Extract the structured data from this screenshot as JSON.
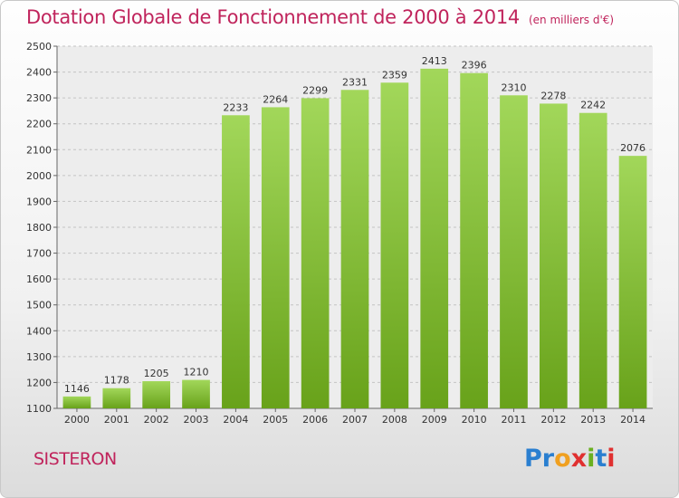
{
  "chart_data": {
    "type": "bar",
    "title": "Dotation Globale de Fonctionnement de 2000 à 2014",
    "subtitle": "(en milliers d'€)",
    "categories": [
      "2000",
      "2001",
      "2002",
      "2003",
      "2004",
      "2005",
      "2006",
      "2007",
      "2008",
      "2009",
      "2010",
      "2011",
      "2012",
      "2013",
      "2014"
    ],
    "values": [
      1146,
      1178,
      1205,
      1210,
      2233,
      2264,
      2299,
      2331,
      2359,
      2413,
      2396,
      2310,
      2278,
      2242,
      2076
    ],
    "ylim": [
      1100,
      2500
    ],
    "yticks": [
      1100,
      1200,
      1300,
      1400,
      1500,
      1600,
      1700,
      1800,
      1900,
      2000,
      2100,
      2200,
      2300,
      2400,
      2500
    ],
    "grid": true,
    "bar_color": "#8cc63f"
  },
  "footer": {
    "city": "SISTERON",
    "logo_letters": [
      "P",
      "r",
      "o",
      "x",
      "i",
      "t",
      "i"
    ]
  }
}
